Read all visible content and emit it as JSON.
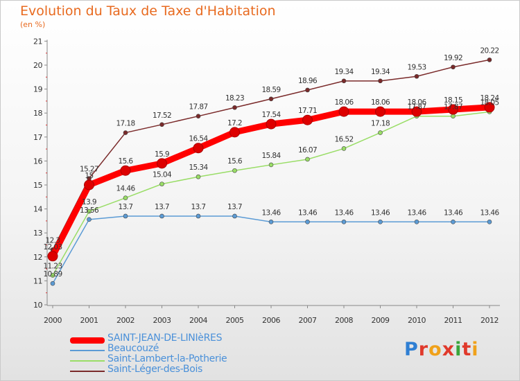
{
  "title": "Evolution du Taux de Taxe d'Habitation",
  "subtitle": "(en %)",
  "logo_text": "Proxiti",
  "chart_data": {
    "type": "line",
    "title": "Evolution du Taux de Taxe d'Habitation",
    "ylabel": "(en %)",
    "xlabel": "",
    "x": [
      "2000",
      "2001",
      "2002",
      "2003",
      "2004",
      "2005",
      "2006",
      "2007",
      "2008",
      "2009",
      "2010",
      "2011",
      "2012"
    ],
    "ylim": [
      10,
      21
    ],
    "yticks": [
      "10",
      "11",
      "12",
      "13",
      "14",
      "15",
      "16",
      "17",
      "18",
      "19",
      "20",
      "21"
    ],
    "grid": false,
    "legend": "bottom-left",
    "series": [
      {
        "name": "SAINT-JEAN-DE-LINIèRES",
        "color": "#ff0000",
        "emphasis": true,
        "values": [
          12.03,
          15.0,
          15.6,
          15.9,
          16.54,
          17.2,
          17.54,
          17.71,
          18.06,
          18.06,
          18.06,
          18.15,
          18.24
        ],
        "labels": [
          "12.03",
          "15",
          "15.6",
          "15.9",
          "16.54",
          "17.2",
          "17.54",
          "17.71",
          "18.06",
          "18.06",
          "18.06",
          "18.15",
          "18.24"
        ]
      },
      {
        "name": "Beaucouzé",
        "color": "#5b9bd5",
        "values": [
          10.89,
          13.56,
          13.7,
          13.7,
          13.7,
          13.7,
          13.46,
          13.46,
          13.46,
          13.46,
          13.46,
          13.46,
          13.46
        ],
        "labels": [
          "10.89",
          "13.56",
          "13.7",
          "13.7",
          "13.7",
          "13.7",
          "13.46",
          "13.46",
          "13.46",
          "13.46",
          "13.46",
          "13.46",
          "13.46"
        ]
      },
      {
        "name": "Saint-Lambert-la-Potherie",
        "color": "#99dd66",
        "values": [
          11.23,
          13.9,
          14.46,
          15.04,
          15.34,
          15.6,
          15.84,
          16.07,
          16.52,
          17.18,
          17.87,
          17.87,
          18.05
        ],
        "labels": [
          "11.23",
          "13.9",
          "14.46",
          "15.04",
          "15.34",
          "15.6",
          "15.84",
          "16.07",
          "16.52",
          "17.18",
          "17.87",
          "17.87",
          "18.05"
        ]
      },
      {
        "name": "Saint-Léger-des-Bois",
        "color": "#7a2a2a",
        "values": [
          12.3,
          15.27,
          17.18,
          17.52,
          17.87,
          18.23,
          18.59,
          18.96,
          19.34,
          19.34,
          19.53,
          19.92,
          20.22
        ],
        "labels": [
          "12.3",
          "15.27",
          "17.18",
          "17.52",
          "17.87",
          "18.23",
          "18.59",
          "18.96",
          "19.34",
          "19.34",
          "19.53",
          "19.92",
          "20.22"
        ]
      }
    ]
  }
}
